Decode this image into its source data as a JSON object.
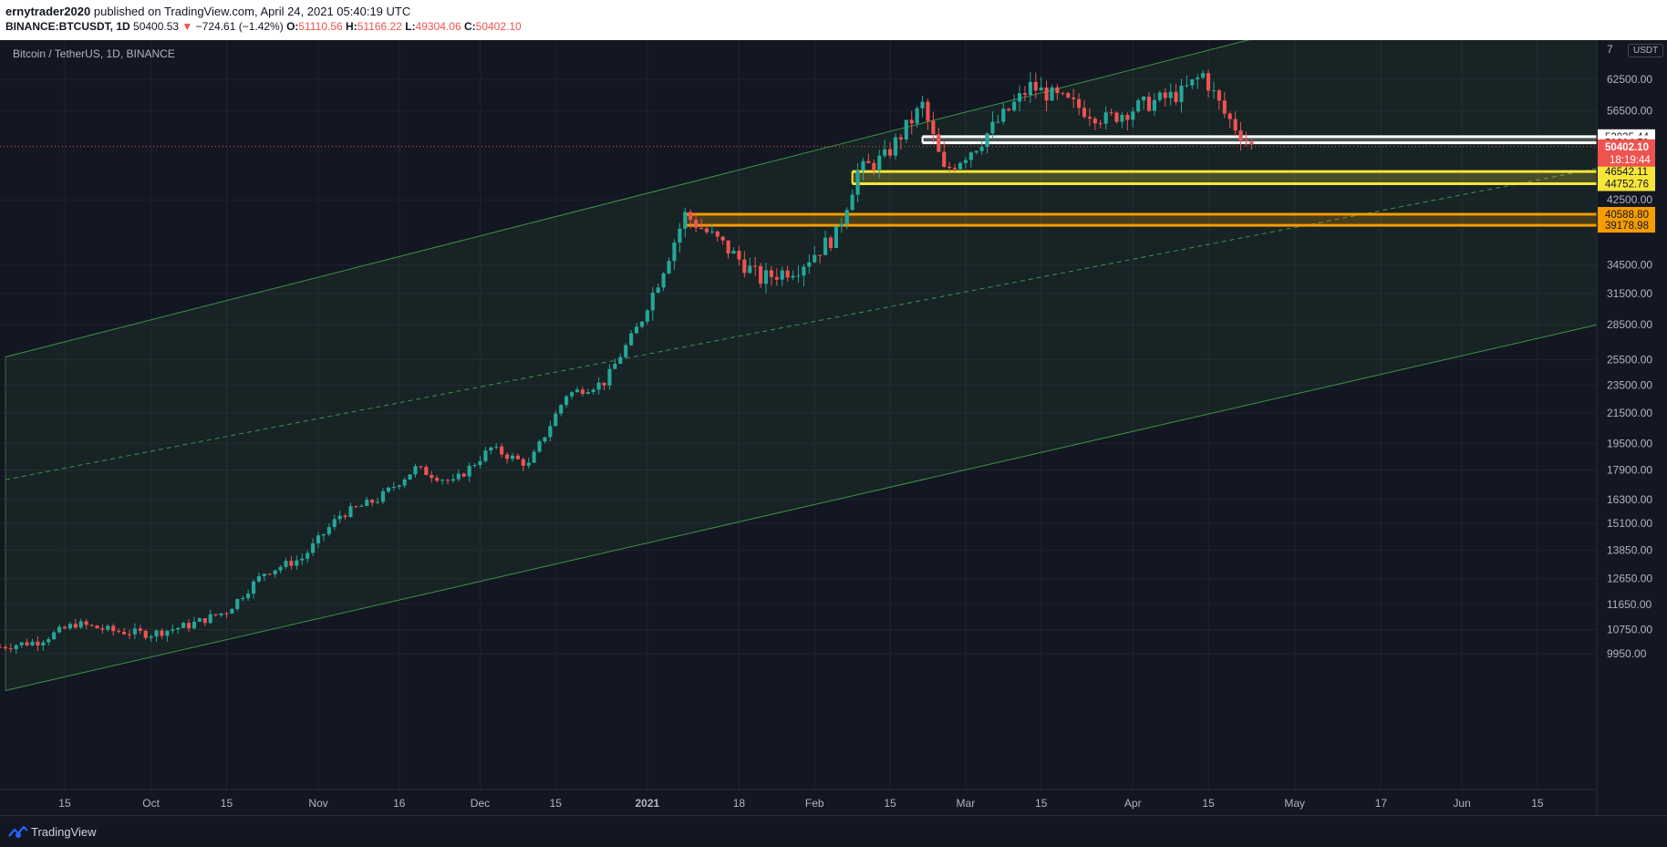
{
  "header": {
    "author": "ernytrader2020",
    "published_text": "published on TradingView.com, April 24, 2021 05:40:19 UTC",
    "symbol_full": "BINANCE:BTCUSDT, 1D",
    "last_price": "50400.53",
    "change_arrow": "▼",
    "change": "−724.61 (−1.42%)",
    "o_label": "O:",
    "o_value": "51110.56",
    "h_label": "H:",
    "h_value": "51166.22",
    "l_label": "L:",
    "l_value": "49304.06",
    "c_label": "C:",
    "c_value": "50402.10"
  },
  "chart": {
    "symbol_label": "Bitcoin / TetherUS, 1D, BINANCE",
    "currency": "USDT",
    "top_tick": "7"
  },
  "footer": {
    "brand": "TradingView"
  },
  "colors": {
    "background": "#131722",
    "up": "#26a69a",
    "down": "#ef5350",
    "channel": "#4caf50",
    "white_zone": "#ffffff",
    "yellow_zone": "#f7e53b",
    "orange_zone": "#f59c00"
  },
  "chart_data": {
    "type": "candlestick",
    "scale": "log",
    "title": "Bitcoin / TetherUS, 1D, BINANCE",
    "y_ticks": [
      62500,
      56500,
      42500,
      34500,
      31500,
      28500,
      25500,
      23500,
      21500,
      19500,
      17900,
      16300,
      15100,
      13850,
      12650,
      11650,
      10750,
      9950
    ],
    "x_ticks": [
      "15",
      "Oct",
      "15",
      "Nov",
      "16",
      "Dec",
      "15",
      "2021",
      "18",
      "Feb",
      "15",
      "Mar",
      "15",
      "Apr",
      "15",
      "May",
      "17",
      "Jun",
      "15"
    ],
    "x_range": [
      "2020-09-03",
      "2021-06-26"
    ],
    "current_price": {
      "value": "50402.10",
      "countdown": "18:19:44"
    },
    "price_tags": [
      {
        "value": "52035.44",
        "style": "white"
      },
      {
        "value": "51014.79",
        "style": "white"
      },
      {
        "value": "46542.11",
        "style": "yellow"
      },
      {
        "value": "44752.76",
        "style": "yellow"
      },
      {
        "value": "40588.80",
        "style": "orange"
      },
      {
        "value": "39178.98",
        "style": "orange"
      }
    ],
    "zones": [
      {
        "name": "white",
        "from_date": "2021-02-21",
        "high": 52035.44,
        "low": 51014.79
      },
      {
        "name": "yellow",
        "from_date": "2021-02-08",
        "high": 46542.11,
        "low": 44752.76
      },
      {
        "name": "orange",
        "from_date": "2021-01-08",
        "high": 40588.8,
        "low": 39178.98
      }
    ],
    "channel": {
      "upper": [
        [
          "2020-09-03",
          25600
        ],
        [
          "2021-04-26",
          72000
        ]
      ],
      "middle": [
        [
          "2020-09-03",
          17300
        ],
        [
          "2021-06-26",
          47000
        ]
      ],
      "lower": [
        [
          "2020-09-03",
          8810
        ],
        [
          "2021-06-26",
          28500
        ]
      ]
    },
    "closes": [
      [
        "2020-09-03",
        10170
      ],
      [
        "2020-09-10",
        10350
      ],
      [
        "2020-09-17",
        10950
      ],
      [
        "2020-09-24",
        10700
      ],
      [
        "2020-10-01",
        10600
      ],
      [
        "2020-10-08",
        10900
      ],
      [
        "2020-10-15",
        11400
      ],
      [
        "2020-10-22",
        12900
      ],
      [
        "2020-10-29",
        13500
      ],
      [
        "2020-11-05",
        15500
      ],
      [
        "2020-11-12",
        16300
      ],
      [
        "2020-11-19",
        18000
      ],
      [
        "2020-11-26",
        17200
      ],
      [
        "2020-12-03",
        19200
      ],
      [
        "2020-12-10",
        18200
      ],
      [
        "2020-12-17",
        22800
      ],
      [
        "2020-12-24",
        23700
      ],
      [
        "2020-12-31",
        29000
      ],
      [
        "2021-01-08",
        40500
      ],
      [
        "2021-01-15",
        36800
      ],
      [
        "2021-01-22",
        33000
      ],
      [
        "2021-01-29",
        34300
      ],
      [
        "2021-02-05",
        38000
      ],
      [
        "2021-02-09",
        46500
      ],
      [
        "2021-02-14",
        48700
      ],
      [
        "2021-02-21",
        57500
      ],
      [
        "2021-02-25",
        46500
      ],
      [
        "2021-03-03",
        50600
      ],
      [
        "2021-03-13",
        61100
      ],
      [
        "2021-03-20",
        58000
      ],
      [
        "2021-03-27",
        55000
      ],
      [
        "2021-04-03",
        57600
      ],
      [
        "2021-04-10",
        59800
      ],
      [
        "2021-04-14",
        63500
      ],
      [
        "2021-04-18",
        56000
      ],
      [
        "2021-04-23",
        50402
      ]
    ]
  }
}
